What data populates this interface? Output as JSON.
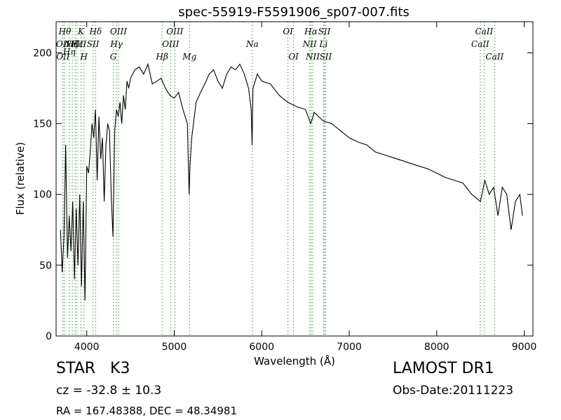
{
  "chart_data": {
    "type": "line",
    "title": "spec-55919-F5591906_sp07-007.fits",
    "xlabel": "Wavelength (Å)",
    "ylabel": "Flux (relative)",
    "xlim": [
      3650,
      9100
    ],
    "ylim": [
      0,
      222
    ],
    "xticks": [
      4000,
      5000,
      6000,
      7000,
      8000,
      9000
    ],
    "yticks": [
      0,
      50,
      100,
      150,
      200
    ],
    "grid": false,
    "line_color": "#000000",
    "marker_color": "#2ca02c",
    "series": [
      {
        "x": [
          3700,
          3720,
          3740,
          3760,
          3780,
          3800,
          3820,
          3840,
          3860,
          3880,
          3900,
          3920,
          3940,
          3960,
          3980,
          4000,
          4020,
          4040,
          4060,
          4080,
          4100,
          4120,
          4140,
          4160,
          4180,
          4200,
          4220,
          4240,
          4260,
          4280,
          4300,
          4320,
          4340,
          4360,
          4380,
          4400,
          4420,
          4440,
          4460,
          4480,
          4500,
          4550,
          4600,
          4650,
          4700,
          4750,
          4800,
          4850,
          4900,
          4950,
          5000,
          5050,
          5100,
          5150,
          5170,
          5180,
          5200,
          5250,
          5300,
          5350,
          5400,
          5450,
          5500,
          5550,
          5600,
          5650,
          5700,
          5750,
          5800,
          5850,
          5880,
          5890,
          5900,
          5950,
          6000,
          6100,
          6200,
          6300,
          6400,
          6500,
          6560,
          6600,
          6700,
          6800,
          6900,
          7000,
          7100,
          7200,
          7300,
          7400,
          7500,
          7600,
          7700,
          7800,
          7900,
          8000,
          8100,
          8200,
          8300,
          8400,
          8500,
          8550,
          8600,
          8650,
          8700,
          8750,
          8800,
          8850,
          8900,
          8950,
          8980
        ],
        "y": [
          75,
          45,
          70,
          135,
          55,
          85,
          60,
          95,
          40,
          90,
          50,
          100,
          35,
          95,
          25,
          120,
          115,
          130,
          150,
          140,
          160,
          110,
          155,
          125,
          140,
          95,
          135,
          150,
          145,
          100,
          70,
          145,
          160,
          155,
          165,
          150,
          170,
          160,
          180,
          175,
          182,
          188,
          190,
          185,
          192,
          178,
          180,
          182,
          175,
          170,
          168,
          172,
          160,
          150,
          100,
          120,
          140,
          165,
          172,
          178,
          185,
          188,
          180,
          175,
          185,
          190,
          188,
          192,
          185,
          175,
          160,
          135,
          175,
          185,
          180,
          178,
          170,
          165,
          162,
          160,
          150,
          158,
          152,
          150,
          145,
          140,
          137,
          135,
          130,
          128,
          126,
          124,
          122,
          120,
          118,
          115,
          112,
          110,
          108,
          100,
          95,
          110,
          100,
          105,
          85,
          105,
          100,
          75,
          95,
          100,
          85
        ]
      }
    ],
    "line_markers": [
      {
        "x": 3726,
        "label": "OII",
        "row": 1
      },
      {
        "x": 3729,
        "label": "OII",
        "row": 2
      },
      {
        "x": 3750,
        "label": "Hθ",
        "row": 0
      },
      {
        "x": 3800,
        "label": "Hη",
        "row": 1.6
      },
      {
        "x": 3835,
        "label": "Hζ",
        "row": 1
      },
      {
        "x": 3869,
        "label": "NeIII",
        "row": 1
      },
      {
        "x": 3889,
        "label": "Hε",
        "row": 1
      },
      {
        "x": 3934,
        "label": "K",
        "row": 0
      },
      {
        "x": 3968,
        "label": "H",
        "row": 2
      },
      {
        "x": 4072,
        "label": "SII",
        "row": 1
      },
      {
        "x": 4102,
        "label": "Hδ",
        "row": 0
      },
      {
        "x": 4304,
        "label": "G",
        "row": 2
      },
      {
        "x": 4340,
        "label": "Hγ",
        "row": 1
      },
      {
        "x": 4363,
        "label": "OIII",
        "row": 0
      },
      {
        "x": 4861,
        "label": "Hβ",
        "row": 2
      },
      {
        "x": 4959,
        "label": "OIII",
        "row": 1
      },
      {
        "x": 5007,
        "label": "OIII",
        "row": 0
      },
      {
        "x": 5175,
        "label": "Mg",
        "row": 2
      },
      {
        "x": 5893,
        "label": "Na",
        "row": 1
      },
      {
        "x": 6300,
        "label": "OI",
        "row": 0
      },
      {
        "x": 6364,
        "label": "OI",
        "row": 2
      },
      {
        "x": 6548,
        "label": "NII",
        "row": 1
      },
      {
        "x": 6563,
        "label": "Hα",
        "row": 0
      },
      {
        "x": 6583,
        "label": "NII",
        "row": 2
      },
      {
        "x": 6707,
        "label": "Li",
        "row": 1
      },
      {
        "x": 6716,
        "label": "SII",
        "row": 0
      },
      {
        "x": 6731,
        "label": "SII",
        "row": 2
      },
      {
        "x": 8498,
        "label": "CaII",
        "row": 1
      },
      {
        "x": 8542,
        "label": "CaII",
        "row": 0
      },
      {
        "x": 8662,
        "label": "CaII",
        "row": 2
      }
    ]
  },
  "info": {
    "class_label": "STAR",
    "subclass": "K3",
    "cz": "cz = -32.8  ± 10.3",
    "coords": "RA = 167.48388, DEC = 48.34981",
    "survey": "LAMOST DR1",
    "obs_date": "Obs-Date:20111223"
  }
}
